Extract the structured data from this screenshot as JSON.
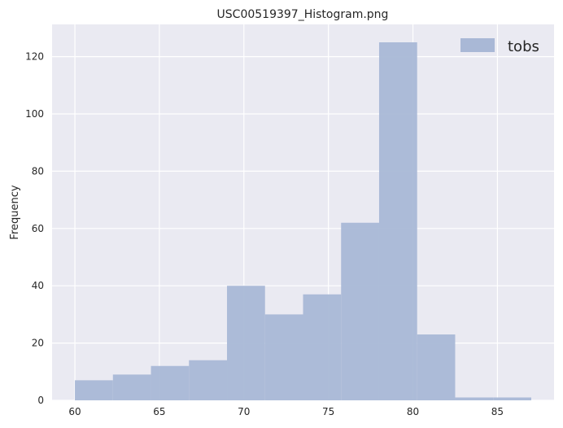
{
  "chart_data": {
    "type": "bar",
    "title": "USC00519397_Histogram.png",
    "xlabel": "",
    "ylabel": "Frequency",
    "xlim": [
      58.65,
      88.35
    ],
    "ylim": [
      0,
      131.25
    ],
    "x_ticks": [
      60,
      65,
      70,
      75,
      80,
      85
    ],
    "y_ticks": [
      0,
      20,
      40,
      60,
      80,
      100,
      120
    ],
    "grid": true,
    "legend_position": "top-right",
    "series": [
      {
        "name": "tobs",
        "color": "#a9b8d6",
        "bins": [
          {
            "x0": 60.0,
            "x1": 62.25,
            "value": 7
          },
          {
            "x0": 62.25,
            "x1": 64.5,
            "value": 9
          },
          {
            "x0": 64.5,
            "x1": 66.75,
            "value": 12
          },
          {
            "x0": 66.75,
            "x1": 69.0,
            "value": 14
          },
          {
            "x0": 69.0,
            "x1": 71.25,
            "value": 40
          },
          {
            "x0": 71.25,
            "x1": 73.5,
            "value": 30
          },
          {
            "x0": 73.5,
            "x1": 75.75,
            "value": 37
          },
          {
            "x0": 75.75,
            "x1": 78.0,
            "value": 62
          },
          {
            "x0": 78.0,
            "x1": 80.25,
            "value": 125
          },
          {
            "x0": 80.25,
            "x1": 82.5,
            "value": 23
          },
          {
            "x0": 82.5,
            "x1": 84.75,
            "value": 1
          },
          {
            "x0": 84.75,
            "x1": 87.0,
            "value": 1
          }
        ]
      }
    ]
  },
  "colors": {
    "plot_background": "#eaeaf2",
    "grid": "#ffffff",
    "text": "#262626"
  }
}
